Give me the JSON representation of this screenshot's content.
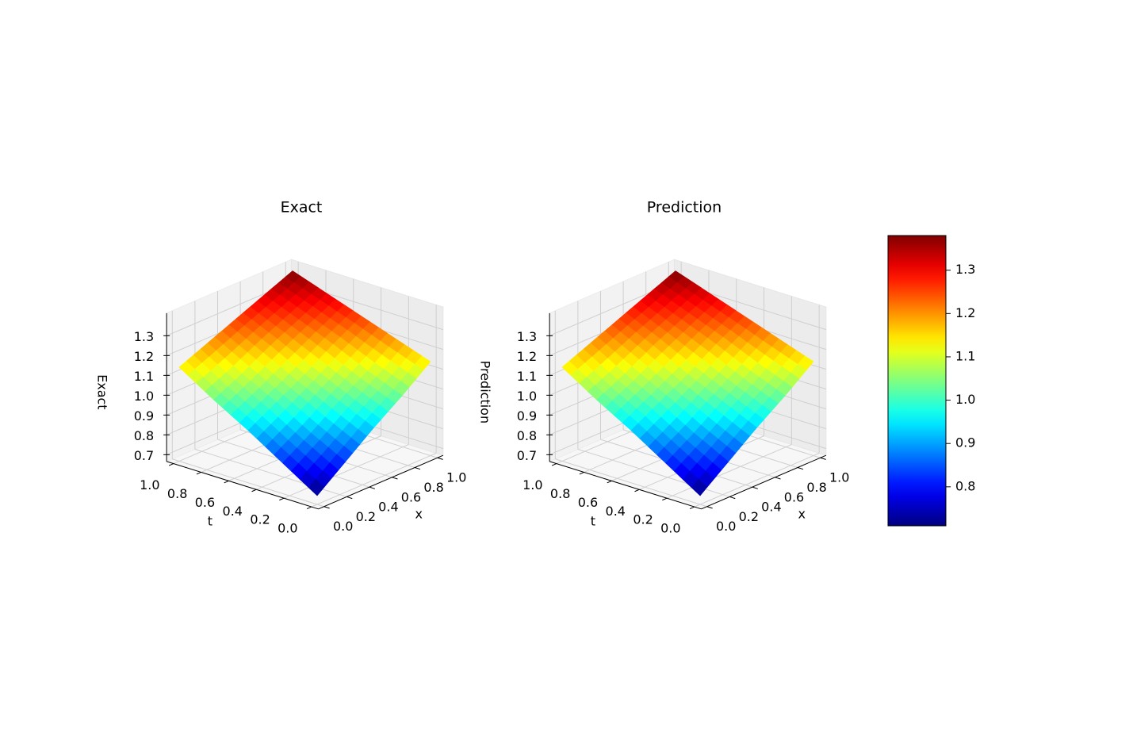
{
  "chart_data": [
    {
      "type": "surface3d",
      "title": "Exact",
      "xlabel": "x",
      "ylabel": "t",
      "zlabel": "Exact",
      "x": [
        0,
        0.25,
        0.5,
        0.75,
        1
      ],
      "y": [
        0,
        0.25,
        0.5,
        0.75,
        1
      ],
      "z": [
        [
          0.71,
          0.82,
          0.93,
          1.03,
          1.14
        ],
        [
          0.82,
          0.91,
          1.01,
          1.1,
          1.2
        ],
        [
          0.93,
          1.01,
          1.09,
          1.18,
          1.26
        ],
        [
          1.03,
          1.1,
          1.18,
          1.25,
          1.32
        ],
        [
          1.14,
          1.2,
          1.26,
          1.32,
          1.38
        ]
      ],
      "colormap": "jet",
      "xlim": [
        0,
        1
      ],
      "ylim": [
        0,
        1
      ],
      "zlim": [
        0.7,
        1.38
      ],
      "xticks": [
        {
          "value": 0,
          "label": "0.0"
        },
        0.2,
        0.4,
        0.6,
        0.8,
        {
          "value": 1,
          "label": "1.0"
        }
      ],
      "yticks": [
        {
          "value": 0,
          "label": "0.0"
        },
        0.2,
        0.4,
        0.6,
        0.8,
        {
          "value": 1,
          "label": "1.0"
        }
      ],
      "zticks": [
        0.7,
        0.8,
        0.9,
        {
          "value": 1,
          "label": "1.0"
        },
        1.1,
        1.2,
        1.3
      ],
      "grid": true
    },
    {
      "type": "surface3d",
      "title": "Prediction",
      "xlabel": "x",
      "ylabel": "t",
      "zlabel": "Prediction",
      "x": [
        0,
        0.25,
        0.5,
        0.75,
        1
      ],
      "y": [
        0,
        0.25,
        0.5,
        0.75,
        1
      ],
      "z": [
        [
          0.71,
          0.82,
          0.93,
          1.03,
          1.14
        ],
        [
          0.82,
          0.91,
          1.01,
          1.1,
          1.2
        ],
        [
          0.93,
          1.01,
          1.09,
          1.18,
          1.26
        ],
        [
          1.03,
          1.1,
          1.18,
          1.25,
          1.32
        ],
        [
          1.14,
          1.2,
          1.26,
          1.32,
          1.38
        ]
      ],
      "colormap": "jet",
      "xlim": [
        0,
        1
      ],
      "ylim": [
        0,
        1
      ],
      "zlim": [
        0.7,
        1.38
      ],
      "xticks": [
        {
          "value": 0,
          "label": "0.0"
        },
        0.2,
        0.4,
        0.6,
        0.8,
        {
          "value": 1,
          "label": "1.0"
        }
      ],
      "yticks": [
        {
          "value": 0,
          "label": "0.0"
        },
        0.2,
        0.4,
        0.6,
        0.8,
        {
          "value": 1,
          "label": "1.0"
        }
      ],
      "zticks": [
        0.7,
        0.8,
        0.9,
        {
          "value": 1,
          "label": "1.0"
        },
        1.1,
        1.2,
        1.3
      ],
      "grid": true
    },
    {
      "type": "colorbar",
      "colormap": "jet",
      "clim": [
        0.71,
        1.38
      ],
      "ticks": [
        0.8,
        0.9,
        {
          "value": 1,
          "label": "1.0"
        },
        1.1,
        1.2,
        1.3
      ]
    }
  ]
}
